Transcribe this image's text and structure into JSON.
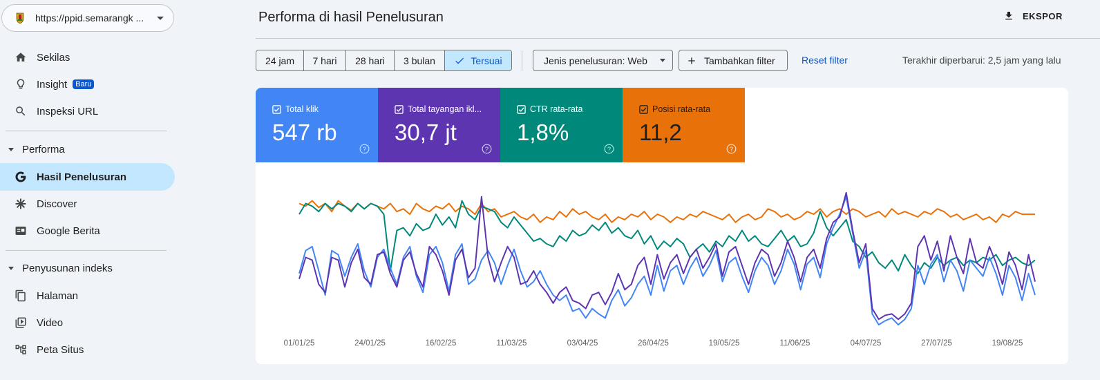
{
  "property": {
    "url": "https://ppid.semarangk ..."
  },
  "sidebar": {
    "items": [
      {
        "label": "Sekilas",
        "icon": "home-icon"
      },
      {
        "label": "Insight",
        "icon": "lightbulb-icon",
        "badge": "Baru"
      },
      {
        "label": "Inspeksi URL",
        "icon": "search-icon"
      }
    ],
    "sections": [
      {
        "label": "Performa",
        "items": [
          {
            "label": "Hasil Penelusuran",
            "icon": "google-g-icon",
            "active": true
          },
          {
            "label": "Discover",
            "icon": "asterisk-icon"
          },
          {
            "label": "Google Berita",
            "icon": "news-icon"
          }
        ]
      },
      {
        "label": "Penyusunan indeks",
        "items": [
          {
            "label": "Halaman",
            "icon": "pages-icon"
          },
          {
            "label": "Video",
            "icon": "video-icon"
          },
          {
            "label": "Peta Situs",
            "icon": "sitemap-icon"
          }
        ]
      }
    ]
  },
  "header": {
    "title": "Performa di hasil Penelusuran",
    "export_label": "EKSPOR"
  },
  "filters": {
    "ranges": [
      "24 jam",
      "7 hari",
      "28 hari",
      "3 bulan",
      "Tersuai"
    ],
    "selected_range": "Tersuai",
    "search_type": "Jenis penelusuran: Web",
    "add_filter": "Tambahkan filter",
    "reset": "Reset filter",
    "updated": "Terakhir diperbarui: 2,5 jam yang lalu"
  },
  "metrics": [
    {
      "label": "Total klik",
      "value": "547 rb",
      "color": "#4285f4",
      "checked": true
    },
    {
      "label": "Total tayangan ikl...",
      "value": "30,7 jt",
      "color": "#5e35b1",
      "checked": true
    },
    {
      "label": "CTR rata-rata",
      "value": "1,8%",
      "color": "#00897b",
      "checked": true
    },
    {
      "label": "Posisi rata-rata",
      "value": "11,2",
      "color": "#e8710a",
      "checked": true
    }
  ],
  "chart_data": {
    "type": "line",
    "x_tick_labels": [
      "01/01/25",
      "24/01/25",
      "16/02/25",
      "11/03/25",
      "03/04/25",
      "26/04/25",
      "19/05/25",
      "11/06/25",
      "04/07/25",
      "27/07/25",
      "19/08/25"
    ],
    "x_range": [
      "01/01/25",
      "31/08/25"
    ],
    "grid": false,
    "y_axis_labels": false,
    "series": [
      {
        "name": "Total klik",
        "color": "#4285f4",
        "norm_values": [
          0.38,
          0.55,
          0.58,
          0.4,
          0.22,
          0.55,
          0.52,
          0.36,
          0.5,
          0.6,
          0.4,
          0.28,
          0.5,
          0.56,
          0.42,
          0.3,
          0.5,
          0.58,
          0.36,
          0.24,
          0.52,
          0.58,
          0.46,
          0.25,
          0.52,
          0.6,
          0.3,
          0.34,
          0.48,
          0.55,
          0.46,
          0.3,
          0.44,
          0.56,
          0.4,
          0.28,
          0.32,
          0.4,
          0.3,
          0.22,
          0.18,
          0.22,
          0.1,
          0.12,
          0.05,
          0.12,
          0.08,
          0.05,
          0.18,
          0.26,
          0.14,
          0.2,
          0.3,
          0.36,
          0.22,
          0.44,
          0.25,
          0.4,
          0.44,
          0.3,
          0.42,
          0.5,
          0.36,
          0.44,
          0.55,
          0.32,
          0.46,
          0.5,
          0.36,
          0.24,
          0.4,
          0.5,
          0.44,
          0.3,
          0.4,
          0.56,
          0.45,
          0.26,
          0.45,
          0.5,
          0.35,
          0.6,
          0.72,
          0.82,
          0.95,
          0.68,
          0.42,
          0.55,
          0.08,
          0.0,
          0.03,
          0.05,
          0.0,
          0.04,
          0.12,
          0.44,
          0.3,
          0.45,
          0.52,
          0.32,
          0.48,
          0.4,
          0.25,
          0.48,
          0.42,
          0.36,
          0.5,
          0.38,
          0.22,
          0.44,
          0.35,
          0.18,
          0.38,
          0.22
        ]
      },
      {
        "name": "Total tayangan iklan",
        "color": "#5e35b1",
        "norm_values": [
          0.34,
          0.5,
          0.48,
          0.3,
          0.24,
          0.5,
          0.48,
          0.28,
          0.46,
          0.56,
          0.35,
          0.3,
          0.52,
          0.54,
          0.38,
          0.28,
          0.48,
          0.54,
          0.38,
          0.28,
          0.58,
          0.52,
          0.4,
          0.22,
          0.48,
          0.56,
          0.35,
          0.42,
          0.95,
          0.5,
          0.32,
          0.46,
          0.58,
          0.5,
          0.3,
          0.32,
          0.4,
          0.3,
          0.24,
          0.16,
          0.24,
          0.28,
          0.18,
          0.16,
          0.12,
          0.22,
          0.24,
          0.15,
          0.24,
          0.38,
          0.26,
          0.3,
          0.44,
          0.5,
          0.3,
          0.52,
          0.34,
          0.46,
          0.52,
          0.38,
          0.5,
          0.56,
          0.42,
          0.5,
          0.6,
          0.36,
          0.54,
          0.58,
          0.44,
          0.3,
          0.46,
          0.56,
          0.52,
          0.36,
          0.46,
          0.62,
          0.5,
          0.32,
          0.5,
          0.56,
          0.42,
          0.64,
          0.76,
          0.8,
          0.98,
          0.7,
          0.46,
          0.6,
          0.12,
          0.04,
          0.07,
          0.08,
          0.04,
          0.08,
          0.16,
          0.58,
          0.66,
          0.48,
          0.62,
          0.4,
          0.66,
          0.5,
          0.38,
          0.64,
          0.46,
          0.42,
          0.58,
          0.46,
          0.3,
          0.54,
          0.44,
          0.26,
          0.52,
          0.32
        ]
      },
      {
        "name": "CTR rata-rata",
        "color": "#00897b",
        "norm_values": [
          0.82,
          0.9,
          0.88,
          0.84,
          0.9,
          0.86,
          0.9,
          0.88,
          0.84,
          0.9,
          0.86,
          0.9,
          0.88,
          0.82,
          0.4,
          0.7,
          0.72,
          0.66,
          0.75,
          0.7,
          0.72,
          0.82,
          0.74,
          0.8,
          0.72,
          0.92,
          0.82,
          0.78,
          0.88,
          0.86,
          0.84,
          0.76,
          0.72,
          0.8,
          0.74,
          0.68,
          0.62,
          0.64,
          0.6,
          0.58,
          0.66,
          0.62,
          0.7,
          0.66,
          0.68,
          0.74,
          0.7,
          0.76,
          0.68,
          0.72,
          0.66,
          0.64,
          0.7,
          0.6,
          0.66,
          0.56,
          0.62,
          0.58,
          0.64,
          0.6,
          0.5,
          0.56,
          0.6,
          0.54,
          0.62,
          0.58,
          0.66,
          0.62,
          0.7,
          0.62,
          0.66,
          0.6,
          0.58,
          0.64,
          0.7,
          0.62,
          0.66,
          0.58,
          0.6,
          0.68,
          0.84,
          0.72,
          0.66,
          0.72,
          0.78,
          0.62,
          0.58,
          0.5,
          0.54,
          0.46,
          0.42,
          0.48,
          0.4,
          0.52,
          0.44,
          0.38,
          0.46,
          0.42,
          0.5,
          0.44,
          0.48,
          0.5,
          0.44,
          0.48,
          0.46,
          0.5,
          0.48,
          0.52,
          0.44,
          0.48,
          0.5,
          0.46,
          0.44,
          0.48
        ]
      },
      {
        "name": "Posisi rata-rata",
        "color": "#e8710a",
        "norm_values": [
          0.9,
          0.88,
          0.92,
          0.87,
          0.9,
          0.84,
          0.92,
          0.88,
          0.85,
          0.9,
          0.86,
          0.9,
          0.88,
          0.86,
          0.9,
          0.84,
          0.86,
          0.82,
          0.9,
          0.86,
          0.84,
          0.88,
          0.86,
          0.9,
          0.84,
          0.88,
          0.86,
          0.82,
          0.9,
          0.84,
          0.86,
          0.8,
          0.82,
          0.84,
          0.8,
          0.78,
          0.82,
          0.76,
          0.8,
          0.78,
          0.84,
          0.8,
          0.86,
          0.82,
          0.84,
          0.8,
          0.78,
          0.82,
          0.76,
          0.8,
          0.78,
          0.82,
          0.8,
          0.84,
          0.78,
          0.82,
          0.8,
          0.76,
          0.8,
          0.78,
          0.82,
          0.8,
          0.84,
          0.82,
          0.8,
          0.78,
          0.82,
          0.76,
          0.8,
          0.82,
          0.78,
          0.8,
          0.86,
          0.84,
          0.8,
          0.82,
          0.78,
          0.8,
          0.84,
          0.82,
          0.86,
          0.8,
          0.84,
          0.86,
          0.82,
          0.86,
          0.84,
          0.8,
          0.82,
          0.84,
          0.8,
          0.86,
          0.82,
          0.84,
          0.82,
          0.8,
          0.84,
          0.82,
          0.86,
          0.84,
          0.8,
          0.82,
          0.78,
          0.8,
          0.82,
          0.78,
          0.8,
          0.76,
          0.82,
          0.8,
          0.84,
          0.82,
          0.82,
          0.82
        ]
      }
    ]
  }
}
